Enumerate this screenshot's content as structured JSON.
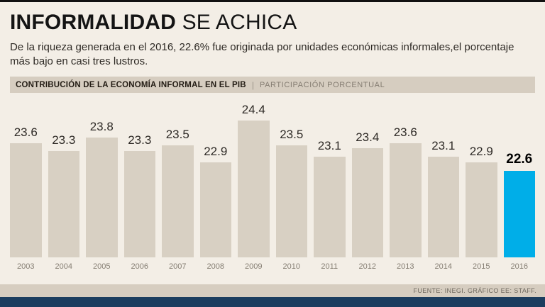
{
  "title": {
    "main": "INFORMALIDAD",
    "secondary": " SE ACHICA"
  },
  "deck": "De la riqueza generada en el 2016, 22.6% fue originada por unidades económicas informales,el porcentaje más bajo en casi tres lustros.",
  "chart_header": {
    "title": "CONTRIBUCIÓN DE LA ECONOMÍA INFORMAL EN EL PIB",
    "separator": "|",
    "subtitle": "PARTICIPACIÓN PORCENTUAL"
  },
  "chart_data": {
    "type": "bar",
    "title": "CONTRIBUCIÓN DE LA ECONOMÍA INFORMAL EN EL PIB",
    "ylabel": "PARTICIPACIÓN PORCENTUAL",
    "categories": [
      "2003",
      "2004",
      "2005",
      "2006",
      "2007",
      "2008",
      "2009",
      "2010",
      "2011",
      "2012",
      "2013",
      "2014",
      "2015",
      "2016"
    ],
    "values": [
      23.6,
      23.3,
      23.8,
      23.3,
      23.5,
      22.9,
      24.4,
      23.5,
      23.1,
      23.4,
      23.6,
      23.1,
      22.9,
      22.6
    ],
    "highlight_index": 13,
    "bar_color": "#d8d0c3",
    "highlight_color": "#00aee8",
    "ylim": [
      19.5,
      24.4
    ],
    "grid": false,
    "legend": "none",
    "value_labels": "above-bars"
  },
  "footer": {
    "source": "FUENTE: INEGI.  GRÁFICO EE: STAFF."
  }
}
